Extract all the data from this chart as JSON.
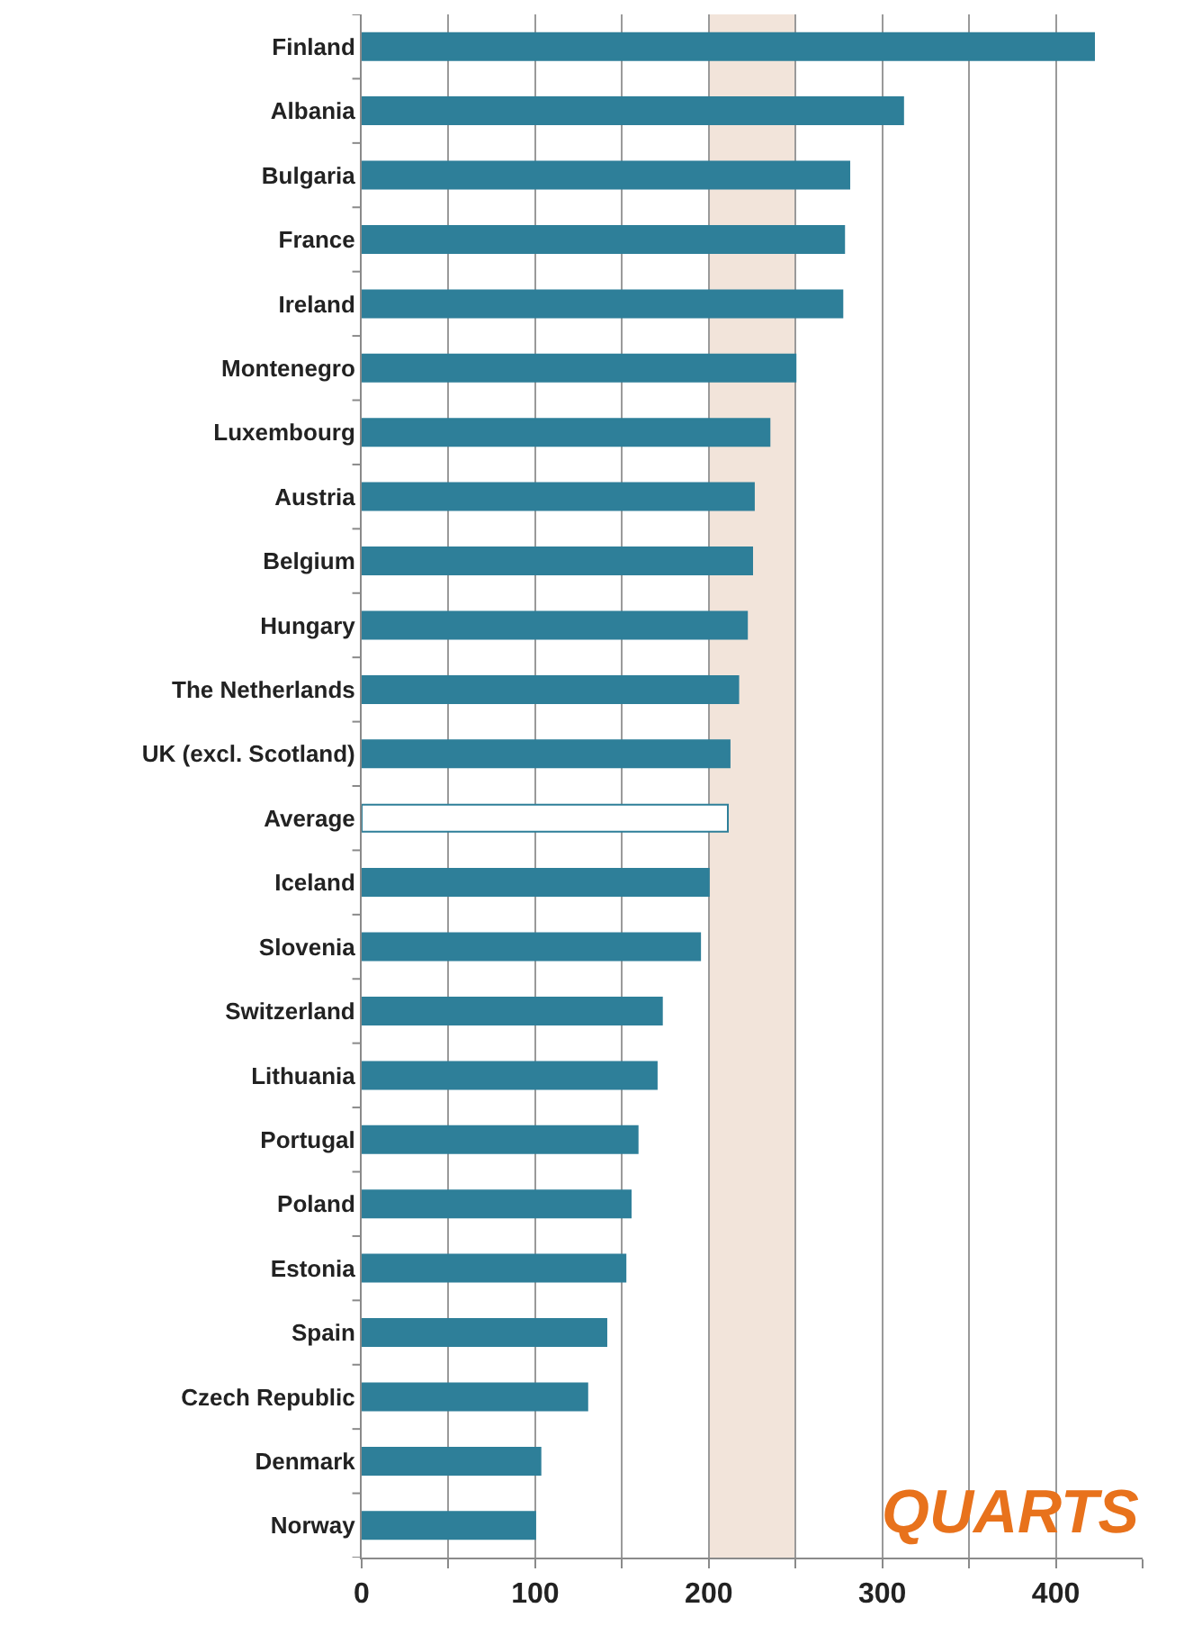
{
  "chart_data": {
    "type": "bar",
    "orientation": "horizontal",
    "categories": [
      "Finland",
      "Albania",
      "Bulgaria",
      "France",
      "Ireland",
      "Montenegro",
      "Luxembourg",
      "Austria",
      "Belgium",
      "Hungary",
      "The Netherlands",
      "UK (excl. Scotland)",
      "Average",
      "Iceland",
      "Slovenia",
      "Switzerland",
      "Lithuania",
      "Portugal",
      "Poland",
      "Estonia",
      "Spain",
      "Czech Republic",
      "Denmark",
      "Norway"
    ],
    "values": [
      422,
      312,
      281,
      278,
      277,
      250,
      235,
      226,
      225,
      222,
      217,
      212,
      211,
      200,
      195,
      173,
      170,
      159,
      155,
      152,
      141,
      130,
      103,
      100
    ],
    "color": "#2e7f99",
    "colors": [
      "#2e7f99",
      "#2e7f99",
      "#2e7f99",
      "#2e7f99",
      "#2e7f99",
      "#2e7f99",
      "#2e7f99",
      "#2e7f99",
      "#2e7f99",
      "#2e7f99",
      "#2e7f99",
      "#2e7f99",
      "#ffffff",
      "#2e7f99",
      "#2e7f99",
      "#2e7f99",
      "#2e7f99",
      "#2e7f99",
      "#2e7f99",
      "#2e7f99",
      "#2e7f99",
      "#2e7f99",
      "#2e7f99",
      "#2e7f99"
    ],
    "xlim": [
      0,
      450
    ],
    "xticks": [
      0,
      {
        "value": 50,
        "label": null
      },
      100,
      {
        "value": 150,
        "label": null
      },
      200,
      {
        "value": 250,
        "label": null
      },
      300,
      {
        "value": 350,
        "label": null
      },
      400,
      {
        "value": 450,
        "label": null
      }
    ],
    "grid": "x",
    "bands": [
      {
        "axis": "x",
        "from": 200,
        "to": 250,
        "color": "#f2e4da"
      }
    ],
    "annotations": [
      "QUARTS"
    ]
  }
}
